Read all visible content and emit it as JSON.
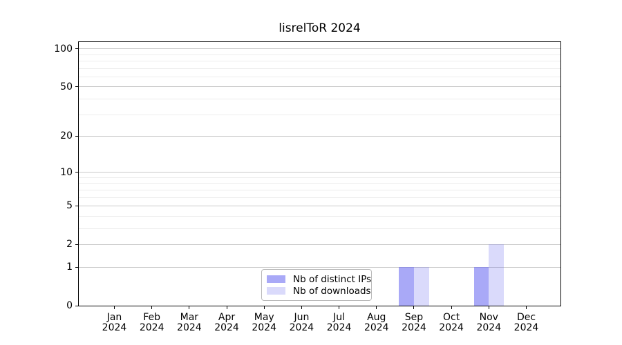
{
  "chart_data": {
    "type": "bar",
    "title": "lisrelToR 2024",
    "x": {
      "months": [
        "Jan",
        "Feb",
        "Mar",
        "Apr",
        "May",
        "Jun",
        "Jul",
        "Aug",
        "Sep",
        "Oct",
        "Nov",
        "Dec"
      ],
      "year_label": "2024"
    },
    "series": [
      {
        "name": "Nb of distinct IPs",
        "color": "#6666f0",
        "alpha": 0.56,
        "values": [
          0,
          0,
          0,
          0,
          0,
          0,
          0,
          0,
          1,
          0,
          1,
          0
        ]
      },
      {
        "name": "Nb of downloads",
        "color": "#6666f0",
        "alpha": 0.24,
        "values": [
          0,
          0,
          0,
          0,
          0,
          0,
          0,
          0,
          1,
          0,
          2,
          0
        ]
      }
    ],
    "y_axis": {
      "scale": "log1p",
      "major_ticks": [
        0,
        1,
        2,
        5,
        10,
        20,
        50,
        100
      ],
      "minor_gridlines": [
        3,
        4,
        6,
        7,
        8,
        9,
        30,
        40,
        60,
        70,
        80,
        90
      ],
      "top_value": 113
    },
    "legend": {
      "position": "lower center"
    },
    "grid": true,
    "colors": {
      "major_grid": "#c9c9c9",
      "minor_grid": "#ececec",
      "axis": "#000000",
      "background": "#ffffff"
    }
  }
}
